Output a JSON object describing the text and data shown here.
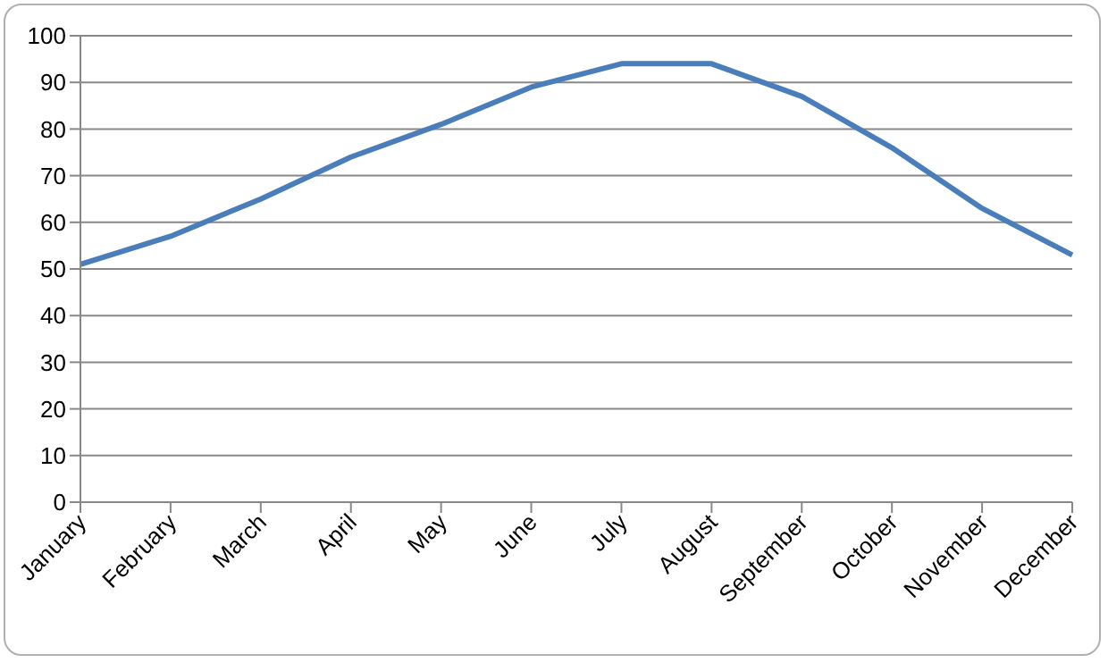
{
  "chart_data": {
    "type": "line",
    "categories": [
      "January",
      "February",
      "March",
      "April",
      "May",
      "June",
      "July",
      "August",
      "September",
      "October",
      "November",
      "December"
    ],
    "series": [
      {
        "color": "#4a7ebb",
        "values": [
          51,
          57,
          65,
          74,
          81,
          89,
          94,
          94,
          87,
          76,
          63,
          53
        ]
      }
    ],
    "ylim": [
      0,
      100
    ],
    "yticks": [
      0,
      10,
      20,
      30,
      40,
      50,
      60,
      70,
      80,
      90,
      100
    ],
    "grid": "y",
    "legend": false,
    "marker": "none",
    "line_style": "solid"
  }
}
